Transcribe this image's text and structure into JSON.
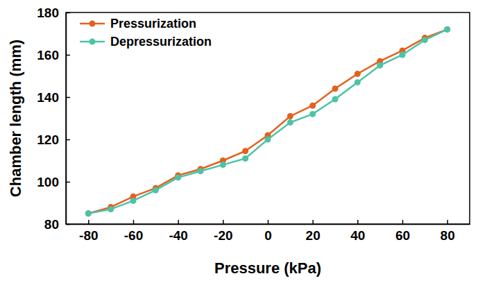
{
  "chart_data": {
    "type": "line",
    "x_label": "Pressure (kPa)",
    "y_label": "Chamber length (mm)",
    "x": [
      -80,
      -70,
      -60,
      -50,
      -40,
      -30,
      -20,
      -10,
      0,
      10,
      20,
      30,
      40,
      50,
      60,
      70,
      80
    ],
    "series": [
      {
        "name": "Pressurization",
        "color": "#e2611f",
        "marker": "circle",
        "line_style": "solid",
        "values": [
          85,
          88,
          93,
          97,
          103,
          106,
          110,
          114.5,
          122,
          131,
          136,
          144,
          151,
          157,
          162,
          168,
          172
        ]
      },
      {
        "name": "Depressurization",
        "color": "#4cc3a6",
        "marker": "circle",
        "line_style": "solid",
        "values": [
          85,
          87,
          91,
          96,
          102,
          105,
          108,
          111,
          120,
          128,
          132,
          139,
          147,
          155,
          160,
          167,
          172
        ]
      }
    ],
    "xlim": [
      -90,
      90
    ],
    "xticks": [
      -80,
      -60,
      -40,
      -20,
      0,
      20,
      40,
      60,
      80
    ],
    "ylim": [
      80,
      180
    ],
    "yticks": [
      80,
      100,
      120,
      140,
      160,
      180
    ],
    "grid": false,
    "legend": "upper left"
  }
}
